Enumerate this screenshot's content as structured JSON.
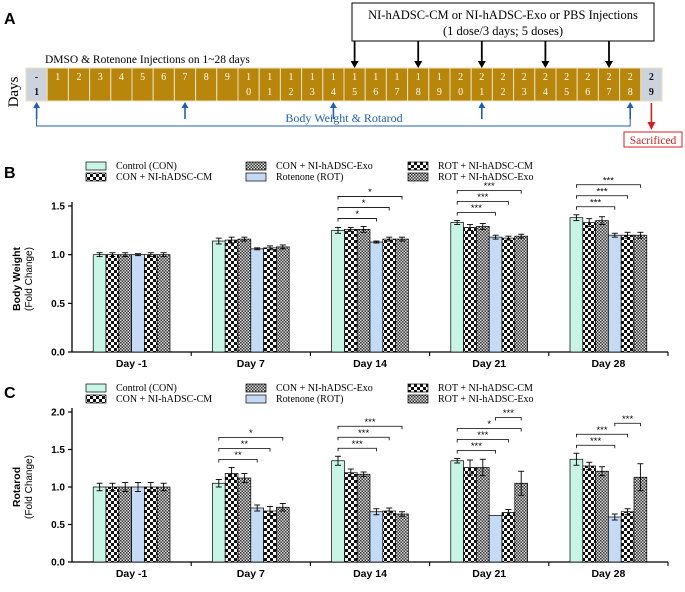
{
  "colors": {
    "con": "#c9f5e6",
    "rot": "#c4daf5",
    "day_box": "#b8860b",
    "day_box_edge": "#e8e0c0",
    "grey_box": "#cdd3dc",
    "arrow_blue": "#1f5fb4",
    "red": "#d42020"
  },
  "timeline": {
    "panel_label": "A",
    "days_label": "Days",
    "injection_box_line1": "NI-hADSC-CM or NI-hADSC-Exo or PBS Injections",
    "injection_box_line2": "(1 dose/3 days; 5 doses)",
    "dmso_label": "DMSO & Rotenone Injections on 1~28 days",
    "bw_label": "Body Weight & Rotarod",
    "sacrificed_label": "Sacrificed",
    "days": [
      {
        "top": "-",
        "bottom": "1",
        "kind": "grey"
      },
      {
        "top": "1",
        "bottom": "",
        "kind": "gold"
      },
      {
        "top": "2",
        "bottom": "",
        "kind": "gold"
      },
      {
        "top": "3",
        "bottom": "",
        "kind": "gold"
      },
      {
        "top": "4",
        "bottom": "",
        "kind": "gold"
      },
      {
        "top": "5",
        "bottom": "",
        "kind": "gold"
      },
      {
        "top": "6",
        "bottom": "",
        "kind": "gold"
      },
      {
        "top": "7",
        "bottom": "",
        "kind": "gold"
      },
      {
        "top": "8",
        "bottom": "",
        "kind": "gold"
      },
      {
        "top": "9",
        "bottom": "",
        "kind": "gold"
      },
      {
        "top": "1",
        "bottom": "0",
        "kind": "gold"
      },
      {
        "top": "1",
        "bottom": "1",
        "kind": "gold"
      },
      {
        "top": "1",
        "bottom": "2",
        "kind": "gold"
      },
      {
        "top": "1",
        "bottom": "3",
        "kind": "gold"
      },
      {
        "top": "1",
        "bottom": "4",
        "kind": "gold"
      },
      {
        "top": "1",
        "bottom": "5",
        "kind": "gold"
      },
      {
        "top": "1",
        "bottom": "6",
        "kind": "gold"
      },
      {
        "top": "1",
        "bottom": "7",
        "kind": "gold"
      },
      {
        "top": "1",
        "bottom": "8",
        "kind": "gold"
      },
      {
        "top": "1",
        "bottom": "9",
        "kind": "gold"
      },
      {
        "top": "2",
        "bottom": "0",
        "kind": "gold"
      },
      {
        "top": "2",
        "bottom": "1",
        "kind": "gold"
      },
      {
        "top": "2",
        "bottom": "2",
        "kind": "gold"
      },
      {
        "top": "2",
        "bottom": "3",
        "kind": "gold"
      },
      {
        "top": "2",
        "bottom": "4",
        "kind": "gold"
      },
      {
        "top": "2",
        "bottom": "5",
        "kind": "gold"
      },
      {
        "top": "2",
        "bottom": "6",
        "kind": "gold"
      },
      {
        "top": "2",
        "bottom": "7",
        "kind": "gold"
      },
      {
        "top": "2",
        "bottom": "8",
        "kind": "gold"
      },
      {
        "top": "2",
        "bottom": "9",
        "kind": "grey"
      }
    ],
    "injection_days": [
      15,
      18,
      21,
      24,
      27
    ],
    "measure_days": [
      -1,
      7,
      14,
      21,
      28
    ],
    "sacrifice_day": 29
  },
  "chart_data": [
    {
      "panel": "B",
      "type": "bar",
      "ylabel": "Body Weight",
      "ylabel_sub": "(Fold Change)",
      "ylim": [
        0,
        1.5
      ],
      "yticks": [
        "0.0",
        "0.5",
        "1.0",
        "1.5"
      ],
      "categories": [
        "Day -1",
        "Day 7",
        "Day 14",
        "Day 21",
        "Day 28"
      ],
      "series": [
        {
          "name": "Control (CON)",
          "pattern": "con",
          "values": [
            1.0,
            1.14,
            1.25,
            1.33,
            1.38
          ],
          "err": [
            0.02,
            0.03,
            0.03,
            0.02,
            0.03
          ]
        },
        {
          "name": "CON + NI-hADSC-CM",
          "pattern": "checker",
          "values": [
            1.0,
            1.15,
            1.26,
            1.28,
            1.33
          ],
          "err": [
            0.02,
            0.03,
            0.02,
            0.03,
            0.04
          ]
        },
        {
          "name": "CON + NI-hADSC-Exo",
          "pattern": "fine",
          "values": [
            1.0,
            1.16,
            1.26,
            1.29,
            1.35
          ],
          "err": [
            0.02,
            0.02,
            0.03,
            0.03,
            0.04
          ]
        },
        {
          "name": "Rotenone (ROT)",
          "pattern": "rot",
          "values": [
            1.0,
            1.06,
            1.13,
            1.18,
            1.2
          ],
          "err": [
            0.01,
            0.01,
            0.01,
            0.02,
            0.02
          ]
        },
        {
          "name": "ROT + NI-hADSC-CM",
          "pattern": "checker",
          "values": [
            1.0,
            1.07,
            1.16,
            1.17,
            1.2
          ],
          "err": [
            0.02,
            0.02,
            0.02,
            0.02,
            0.03
          ]
        },
        {
          "name": "ROT + NI-hADSC-Exo",
          "pattern": "fine",
          "values": [
            1.0,
            1.08,
            1.16,
            1.19,
            1.2
          ],
          "err": [
            0.02,
            0.02,
            0.02,
            0.02,
            0.03
          ]
        }
      ],
      "legend": {
        "col1": [
          "Control (CON)",
          "CON + NI-hADSC-CM"
        ],
        "col2": [
          "CON + NI-hADSC-Exo",
          "Rotenone (ROT)"
        ],
        "col3": [
          "ROT + NI-hADSC-CM",
          "ROT + NI-hADSC-Exo"
        ]
      },
      "significance": [
        {
          "cat": 2,
          "from": 0,
          "to": 5,
          "label": "*"
        },
        {
          "cat": 2,
          "from": 0,
          "to": 4,
          "label": "*"
        },
        {
          "cat": 2,
          "from": 0,
          "to": 3,
          "label": "*"
        },
        {
          "cat": 3,
          "from": 0,
          "to": 5,
          "label": "***"
        },
        {
          "cat": 3,
          "from": 0,
          "to": 4,
          "label": "***"
        },
        {
          "cat": 3,
          "from": 0,
          "to": 3,
          "label": "***"
        },
        {
          "cat": 4,
          "from": 0,
          "to": 5,
          "label": "***"
        },
        {
          "cat": 4,
          "from": 0,
          "to": 4,
          "label": "***"
        },
        {
          "cat": 4,
          "from": 0,
          "to": 3,
          "label": "***"
        }
      ]
    },
    {
      "panel": "C",
      "type": "bar",
      "ylabel": "Rotarod",
      "ylabel_sub": "(Fold Change)",
      "ylim": [
        0,
        2.0
      ],
      "yticks": [
        "0.0",
        "0.5",
        "1.0",
        "1.5",
        "2.0"
      ],
      "categories": [
        "Day -1",
        "Day 7",
        "Day 14",
        "Day 21",
        "Day 28"
      ],
      "series": [
        {
          "name": "Control (CON)",
          "pattern": "con",
          "values": [
            1.0,
            1.05,
            1.35,
            1.35,
            1.37
          ],
          "err": [
            0.05,
            0.05,
            0.06,
            0.03,
            0.08
          ]
        },
        {
          "name": "CON + NI-hADSC-CM",
          "pattern": "checker",
          "values": [
            1.0,
            1.18,
            1.19,
            1.26,
            1.28
          ],
          "err": [
            0.05,
            0.08,
            0.05,
            0.1,
            0.05
          ]
        },
        {
          "name": "CON + NI-hADSC-Exo",
          "pattern": "fine",
          "values": [
            1.0,
            1.12,
            1.17,
            1.26,
            1.21
          ],
          "err": [
            0.06,
            0.06,
            0.03,
            0.11,
            0.06
          ]
        },
        {
          "name": "Rotenone (ROT)",
          "pattern": "rot",
          "values": [
            1.0,
            0.72,
            0.67,
            0.62,
            0.6
          ],
          "err": [
            0.06,
            0.04,
            0.04,
            0.0,
            0.04
          ]
        },
        {
          "name": "ROT + NI-hADSC-CM",
          "pattern": "checker",
          "values": [
            1.0,
            0.68,
            0.68,
            0.66,
            0.67
          ],
          "err": [
            0.06,
            0.06,
            0.04,
            0.04,
            0.04
          ]
        },
        {
          "name": "ROT + NI-hADSC-Exo",
          "pattern": "fine",
          "values": [
            1.0,
            0.73,
            0.64,
            1.05,
            1.13
          ],
          "err": [
            0.05,
            0.05,
            0.03,
            0.16,
            0.18
          ]
        }
      ],
      "legend": {
        "col1": [
          "Control (CON)",
          "CON + NI-hADSC-CM"
        ],
        "col2": [
          "CON + NI-hADSC-Exo",
          "Rotenone (ROT)"
        ],
        "col3": [
          "ROT + NI-hADSC-CM",
          "ROT + NI-hADSC-Exo"
        ]
      },
      "significance": [
        {
          "cat": 1,
          "from": 0,
          "to": 5,
          "label": "*"
        },
        {
          "cat": 1,
          "from": 0,
          "to": 4,
          "label": "**"
        },
        {
          "cat": 1,
          "from": 0,
          "to": 3,
          "label": "**"
        },
        {
          "cat": 2,
          "from": 0,
          "to": 5,
          "label": "***"
        },
        {
          "cat": 2,
          "from": 0,
          "to": 4,
          "label": "***"
        },
        {
          "cat": 2,
          "from": 0,
          "to": 3,
          "label": "***"
        },
        {
          "cat": 3,
          "from": 3,
          "to": 5,
          "label": "***"
        },
        {
          "cat": 3,
          "from": 0,
          "to": 5,
          "label": "*"
        },
        {
          "cat": 3,
          "from": 0,
          "to": 4,
          "label": "***"
        },
        {
          "cat": 3,
          "from": 0,
          "to": 3,
          "label": "***"
        },
        {
          "cat": 4,
          "from": 3,
          "to": 5,
          "label": "***"
        },
        {
          "cat": 4,
          "from": 0,
          "to": 4,
          "label": "***"
        },
        {
          "cat": 4,
          "from": 0,
          "to": 3,
          "label": "***"
        }
      ]
    }
  ]
}
